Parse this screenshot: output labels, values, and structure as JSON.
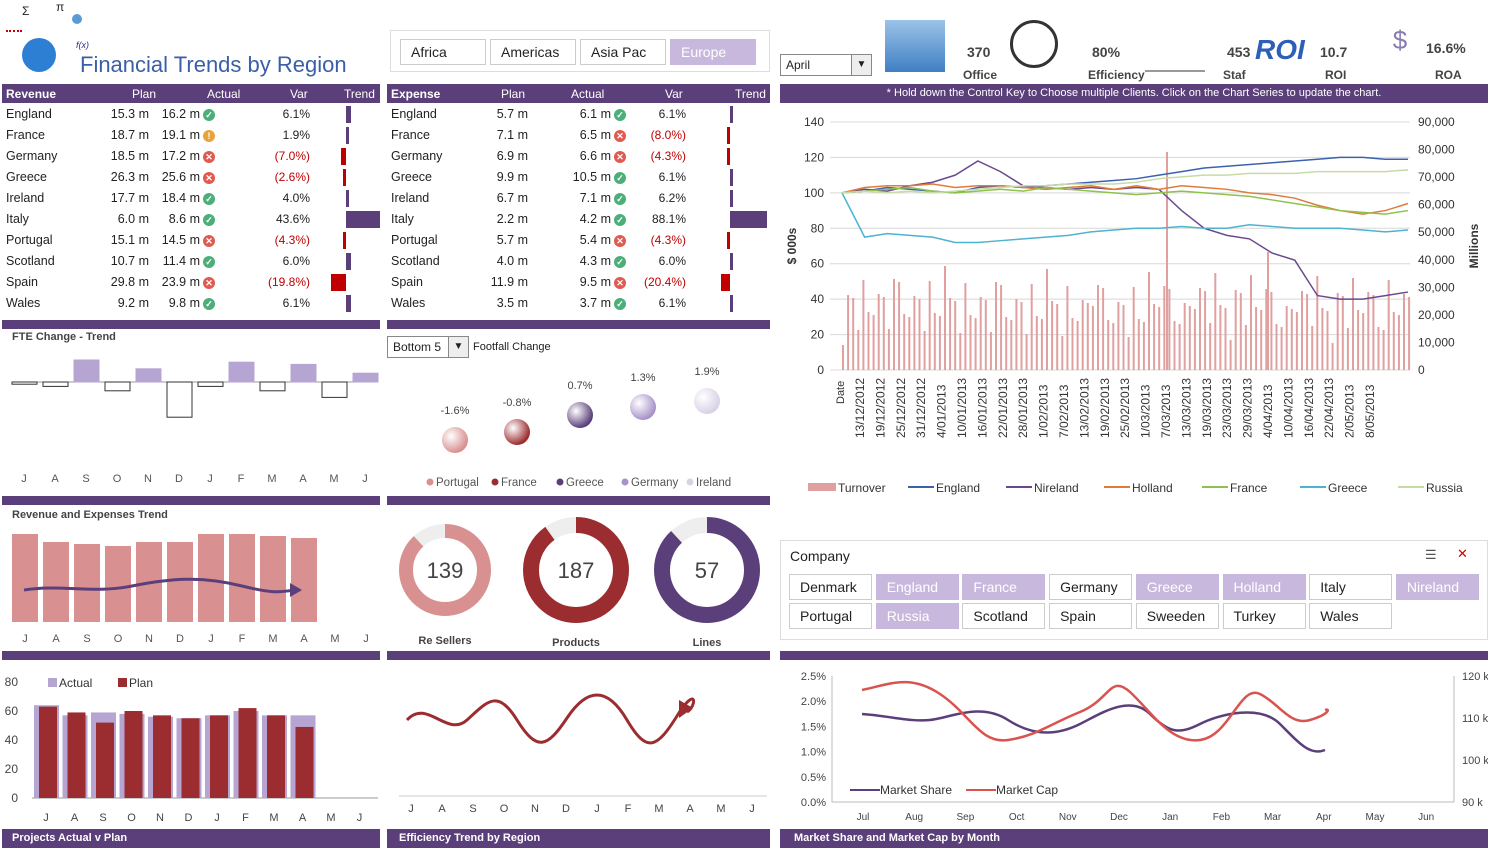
{
  "header": {
    "title": "Financial Trends by Region",
    "fx": "f(x)",
    "sigma": "Σ",
    "pi": "π"
  },
  "regions": [
    "Africa",
    "Americas",
    "Asia Pac",
    "Europe"
  ],
  "month_select": "April",
  "kpis": [
    {
      "value": "370",
      "label": "Office"
    },
    {
      "value": "80%",
      "label": "Efficiency"
    },
    {
      "value": "453",
      "label": "Staf"
    },
    {
      "value": "10.7",
      "label": "ROI"
    },
    {
      "value": "16.6%",
      "label": "ROA"
    }
  ],
  "revenue": {
    "headers": [
      "Revenue",
      "Plan",
      "Actual",
      "Var",
      "Trend"
    ],
    "rows": [
      {
        "name": "England",
        "plan": "15.3 m",
        "actual": "16.2 m",
        "status": "ok",
        "var": "6.1%",
        "neg": false,
        "trend": 6.1
      },
      {
        "name": "France",
        "plan": "18.7 m",
        "actual": "19.1 m",
        "status": "warn",
        "var": "1.9%",
        "neg": false,
        "trend": 1.9
      },
      {
        "name": "Germany",
        "plan": "18.5 m",
        "actual": "17.2 m",
        "status": "bad",
        "var": "(7.0%)",
        "neg": true,
        "trend": -7.0
      },
      {
        "name": "Greece",
        "plan": "26.3 m",
        "actual": "25.6 m",
        "status": "bad",
        "var": "(2.6%)",
        "neg": true,
        "trend": -2.6
      },
      {
        "name": "Ireland",
        "plan": "17.7 m",
        "actual": "18.4 m",
        "status": "ok",
        "var": "4.0%",
        "neg": false,
        "trend": 4.0
      },
      {
        "name": "Italy",
        "plan": "6.0 m",
        "actual": "8.6 m",
        "status": "ok",
        "var": "43.6%",
        "neg": false,
        "trend": 43.6
      },
      {
        "name": "Portugal",
        "plan": "15.1 m",
        "actual": "14.5 m",
        "status": "bad",
        "var": "(4.3%)",
        "neg": true,
        "trend": -4.3
      },
      {
        "name": "Scotland",
        "plan": "10.7 m",
        "actual": "11.4 m",
        "status": "ok",
        "var": "6.0%",
        "neg": false,
        "trend": 6.0
      },
      {
        "name": "Spain",
        "plan": "29.8 m",
        "actual": "23.9 m",
        "status": "bad",
        "var": "(19.8%)",
        "neg": true,
        "trend": -19.8
      },
      {
        "name": "Wales",
        "plan": "9.2 m",
        "actual": "9.8 m",
        "status": "ok",
        "var": "6.1%",
        "neg": false,
        "trend": 6.1
      }
    ]
  },
  "expense": {
    "headers": [
      "Expense",
      "Plan",
      "Actual",
      "Var",
      "Trend"
    ],
    "rows": [
      {
        "name": "England",
        "plan": "5.7 m",
        "actual": "6.1 m",
        "status": "ok",
        "var": "6.1%",
        "neg": false,
        "trend": 6.1
      },
      {
        "name": "France",
        "plan": "7.1 m",
        "actual": "6.5 m",
        "status": "bad",
        "var": "(8.0%)",
        "neg": true,
        "trend": -8.0
      },
      {
        "name": "Germany",
        "plan": "6.9 m",
        "actual": "6.6 m",
        "status": "bad",
        "var": "(4.3%)",
        "neg": true,
        "trend": -4.3
      },
      {
        "name": "Greece",
        "plan": "9.9 m",
        "actual": "10.5 m",
        "status": "ok",
        "var": "6.1%",
        "neg": false,
        "trend": 6.1
      },
      {
        "name": "Ireland",
        "plan": "6.7 m",
        "actual": "7.1 m",
        "status": "ok",
        "var": "6.2%",
        "neg": false,
        "trend": 6.2
      },
      {
        "name": "Italy",
        "plan": "2.2 m",
        "actual": "4.2 m",
        "status": "ok",
        "var": "88.1%",
        "neg": false,
        "trend": 88.1
      },
      {
        "name": "Portugal",
        "plan": "5.7 m",
        "actual": "5.4 m",
        "status": "bad",
        "var": "(4.3%)",
        "neg": true,
        "trend": -4.3
      },
      {
        "name": "Scotland",
        "plan": "4.0 m",
        "actual": "4.3 m",
        "status": "ok",
        "var": "6.0%",
        "neg": false,
        "trend": 6.0
      },
      {
        "name": "Spain",
        "plan": "11.9 m",
        "actual": "9.5 m",
        "status": "bad",
        "var": "(20.4%)",
        "neg": true,
        "trend": -20.4
      },
      {
        "name": "Wales",
        "plan": "3.5 m",
        "actual": "3.7 m",
        "status": "ok",
        "var": "6.1%",
        "neg": false,
        "trend": 6.1
      }
    ]
  },
  "instruction": "* Hold down the Control Key to Choose multiple Clients.  Click on the Chart Series to update the chart.",
  "months12": [
    "J",
    "A",
    "S",
    "O",
    "N",
    "D",
    "J",
    "F",
    "M",
    "A",
    "M",
    "J"
  ],
  "fte": {
    "title": "FTE Change - Trend",
    "values": [
      -1,
      -2,
      10,
      -4,
      6,
      -16,
      -2,
      9,
      -4,
      8,
      -7,
      4
    ]
  },
  "footfall": {
    "select": "Bottom 5",
    "title": "Footfall Change",
    "items": [
      {
        "name": "Portugal",
        "value": "-1.6%",
        "color": "#d89090"
      },
      {
        "name": "France",
        "value": "-0.8%",
        "color": "#9b2d30"
      },
      {
        "name": "Greece",
        "value": "0.7%",
        "color": "#5b3f7a"
      },
      {
        "name": "Germany",
        "value": "1.3%",
        "color": "#a893c8"
      },
      {
        "name": "Ireland",
        "value": "1.9%",
        "color": "#d9d2e6"
      }
    ]
  },
  "rev_exp": {
    "title": "Revenue and Expenses Trend",
    "bars": [
      88,
      80,
      78,
      76,
      80,
      80,
      88,
      88,
      86,
      84
    ]
  },
  "donuts": [
    {
      "value": "139",
      "label": "Re Sellers",
      "color": "#d89090",
      "frac": 0.88
    },
    {
      "value": "187",
      "label": "Products",
      "color": "#9b2d30",
      "frac": 0.9
    },
    {
      "value": "57",
      "label": "Lines",
      "color": "#5b3f7a",
      "frac": 0.88
    }
  ],
  "projects": {
    "title": "Projects Actual v Plan",
    "legend": [
      "Actual",
      "Plan"
    ],
    "yticks": [
      "80",
      "60",
      "40",
      "20",
      "0"
    ],
    "actual": [
      64,
      57,
      59,
      58,
      56,
      55,
      57,
      60,
      57,
      57
    ],
    "plan": [
      63,
      59,
      52,
      60,
      57,
      55,
      57,
      62,
      57,
      49
    ]
  },
  "efficiency": {
    "title": "Efficiency Trend by Region"
  },
  "main_chart": {
    "ylabel": "$ 000s",
    "y2label": "Millions",
    "yticks": [
      "140",
      "120",
      "100",
      "80",
      "60",
      "40",
      "20",
      "0"
    ],
    "y2ticks": [
      "90,000",
      "80,000",
      "70,000",
      "60,000",
      "50,000",
      "40,000",
      "30,000",
      "20,000",
      "10,000",
      "0"
    ],
    "xlabel": "Date",
    "dates": [
      "13/12/2012",
      "19/12/2012",
      "25/12/2012",
      "31/12/2012",
      "4/01/2013",
      "10/01/2013",
      "16/01/2013",
      "22/01/2013",
      "28/01/2013",
      "1/02/2013",
      "7/02/2013",
      "13/02/2013",
      "19/02/2013",
      "25/02/2013",
      "1/03/2013",
      "7/03/2013",
      "13/03/2013",
      "19/03/2013",
      "23/03/2013",
      "29/03/2013",
      "4/04/2013",
      "10/04/2013",
      "16/04/2013",
      "22/04/2013",
      "2/05/2013",
      "8/05/2013"
    ],
    "legend": [
      {
        "name": "Turnover",
        "color": "#e0a0a0"
      },
      {
        "name": "England",
        "color": "#3c62ad"
      },
      {
        "name": "Nireland",
        "color": "#6a4a8f"
      },
      {
        "name": "Holland",
        "color": "#e07b3c"
      },
      {
        "name": "France",
        "color": "#8ec24c"
      },
      {
        "name": "Greece",
        "color": "#4db3cf"
      },
      {
        "name": "Russia",
        "color": "#c6dba6"
      }
    ]
  },
  "company": {
    "title": "Company",
    "items": [
      {
        "name": "Denmark",
        "sel": false
      },
      {
        "name": "England",
        "sel": true
      },
      {
        "name": "France",
        "sel": true
      },
      {
        "name": "Germany",
        "sel": false
      },
      {
        "name": "Greece",
        "sel": true
      },
      {
        "name": "Holland",
        "sel": true
      },
      {
        "name": "Italy",
        "sel": false
      },
      {
        "name": "Nireland",
        "sel": true
      },
      {
        "name": "Portugal",
        "sel": false
      },
      {
        "name": "Russia",
        "sel": true
      },
      {
        "name": "Scotland",
        "sel": false
      },
      {
        "name": "Spain",
        "sel": false
      },
      {
        "name": "Sweeden",
        "sel": false
      },
      {
        "name": "Turkey",
        "sel": false
      },
      {
        "name": "Wales",
        "sel": false
      }
    ]
  },
  "market": {
    "title": "Market Share and Market Cap by Month",
    "yticks": [
      "2.5%",
      "2.0%",
      "1.5%",
      "1.0%",
      "0.5%",
      "0.0%"
    ],
    "y2ticks": [
      "120 k",
      "110 k",
      "100 k",
      "90 k"
    ],
    "months": [
      "Jul",
      "Aug",
      "Sep",
      "Oct",
      "Nov",
      "Dec",
      "Jan",
      "Feb",
      "Mar",
      "Apr",
      "May",
      "Jun"
    ],
    "legend": [
      {
        "name": "Market Share",
        "color": "#5b3f7a"
      },
      {
        "name": "Market Cap",
        "color": "#d9534f"
      }
    ]
  }
}
